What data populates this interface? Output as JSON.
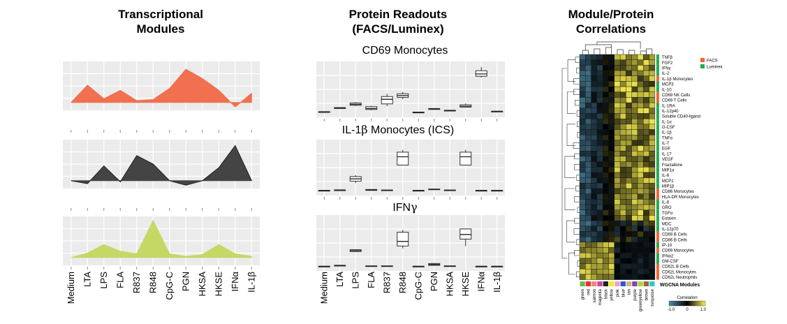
{
  "titles": {
    "transcriptional": [
      "Transcriptional",
      "Modules"
    ],
    "protein": [
      "Protein Readouts",
      "(FACS/Luminex)"
    ],
    "correlation": [
      "Module/Protein",
      "Correlations"
    ]
  },
  "stimuli": [
    "Medium",
    "LTA",
    "LPS",
    "FLA",
    "R837",
    "R848",
    "CpG-C",
    "PGN",
    "HKSA",
    "HKSE",
    "IFNα",
    "IL-1β"
  ],
  "chart_data": [
    {
      "type": "area",
      "panel": "transcriptional-modules",
      "categories": [
        "Medium",
        "LTA",
        "LPS",
        "FLA",
        "R837",
        "R848",
        "CpG-C",
        "PGN",
        "HKSA",
        "HKSE",
        "IFNα",
        "IL-1β"
      ],
      "series": [
        {
          "color": "#f07050",
          "values": [
            0.0,
            0.47,
            0.1,
            0.33,
            0.05,
            0.08,
            0.38,
            0.9,
            0.65,
            0.33,
            -0.12,
            0.25
          ]
        },
        {
          "color": "#444444",
          "values": [
            0.0,
            -0.08,
            0.4,
            -0.03,
            0.68,
            0.45,
            0.0,
            -0.12,
            0.0,
            0.35,
            0.95,
            0.0
          ]
        },
        {
          "color": "#c5d865",
          "values": [
            0.0,
            0.12,
            0.35,
            0.17,
            0.1,
            1.0,
            0.1,
            0.03,
            0.08,
            0.35,
            0.1,
            0.03
          ]
        }
      ]
    },
    {
      "type": "box",
      "panel": "protein-readouts",
      "categories": [
        "Medium",
        "LTA",
        "LPS",
        "FLA",
        "R837",
        "R848",
        "CpG-C",
        "PGN",
        "HKSA",
        "HKSE",
        "IFNα",
        "IL-1β"
      ],
      "subplots": [
        {
          "title_pre": "CD69 Monocytes",
          "title_sym": "",
          "boxes": [
            {
              "q1": 0.03,
              "med": 0.03,
              "q3": 0.03,
              "lo": 0.03,
              "hi": 0.03
            },
            {
              "q1": 0.1,
              "med": 0.11,
              "q3": 0.12,
              "lo": 0.1,
              "hi": 0.12
            },
            {
              "q1": 0.17,
              "med": 0.19,
              "q3": 0.22,
              "lo": 0.15,
              "hi": 0.24
            },
            {
              "q1": 0.08,
              "med": 0.1,
              "q3": 0.14,
              "lo": 0.06,
              "hi": 0.16
            },
            {
              "q1": 0.2,
              "med": 0.3,
              "q3": 0.36,
              "lo": 0.15,
              "hi": 0.42
            },
            {
              "q1": 0.34,
              "med": 0.38,
              "q3": 0.42,
              "lo": 0.3,
              "hi": 0.46
            },
            {
              "q1": 0.02,
              "med": 0.02,
              "q3": 0.02,
              "lo": 0.02,
              "hi": 0.02
            },
            {
              "q1": 0.08,
              "med": 0.09,
              "q3": 0.1,
              "lo": 0.08,
              "hi": 0.1
            },
            {
              "q1": 0.05,
              "med": 0.06,
              "q3": 0.06,
              "lo": 0.05,
              "hi": 0.06
            },
            {
              "q1": 0.13,
              "med": 0.15,
              "q3": 0.18,
              "lo": 0.12,
              "hi": 0.21
            },
            {
              "q1": 0.8,
              "med": 0.85,
              "q3": 0.92,
              "lo": 0.77,
              "hi": 1.0
            },
            {
              "q1": 0.04,
              "med": 0.04,
              "q3": 0.04,
              "lo": 0.04,
              "hi": 0.04
            }
          ]
        },
        {
          "title_pre": "IL-1",
          "title_sym": "β",
          "title_post": " Monocytes (ICS)",
          "boxes": [
            {
              "q1": 0.02,
              "med": 0.02,
              "q3": 0.02,
              "lo": 0.02,
              "hi": 0.02
            },
            {
              "q1": 0.02,
              "med": 0.03,
              "q3": 0.03,
              "lo": 0.02,
              "hi": 0.03
            },
            {
              "q1": 0.22,
              "med": 0.27,
              "q3": 0.32,
              "lo": 0.18,
              "hi": 0.35
            },
            {
              "q1": 0.02,
              "med": 0.03,
              "q3": 0.04,
              "lo": 0.02,
              "hi": 0.04
            },
            {
              "q1": 0.02,
              "med": 0.02,
              "q3": 0.03,
              "lo": 0.02,
              "hi": 0.03
            },
            {
              "q1": 0.57,
              "med": 0.75,
              "q3": 0.85,
              "lo": 0.57,
              "hi": 0.9
            },
            {
              "q1": 0.02,
              "med": 0.02,
              "q3": 0.02,
              "lo": 0.02,
              "hi": 0.02
            },
            {
              "q1": 0.04,
              "med": 0.04,
              "q3": 0.05,
              "lo": 0.04,
              "hi": 0.05
            },
            {
              "q1": 0.02,
              "med": 0.02,
              "q3": 0.03,
              "lo": 0.02,
              "hi": 0.03
            },
            {
              "q1": 0.57,
              "med": 0.75,
              "q3": 0.85,
              "lo": 0.57,
              "hi": 0.9
            },
            {
              "q1": 0.02,
              "med": 0.02,
              "q3": 0.02,
              "lo": 0.02,
              "hi": 0.02
            },
            {
              "q1": 0.02,
              "med": 0.02,
              "q3": 0.02,
              "lo": 0.02,
              "hi": 0.02
            }
          ]
        },
        {
          "title_pre": "IFN",
          "title_sym": "γ",
          "title_post": "",
          "boxes": [
            {
              "q1": 0.01,
              "med": 0.01,
              "q3": 0.01,
              "lo": 0.01,
              "hi": 0.01
            },
            {
              "q1": 0.02,
              "med": 0.03,
              "q3": 0.03,
              "lo": 0.02,
              "hi": 0.03
            },
            {
              "q1": 0.33,
              "med": 0.35,
              "q3": 0.37,
              "lo": 0.32,
              "hi": 0.38
            },
            {
              "q1": 0.01,
              "med": 0.01,
              "q3": 0.02,
              "lo": 0.01,
              "hi": 0.02
            },
            {
              "q1": 0.01,
              "med": 0.01,
              "q3": 0.02,
              "lo": 0.01,
              "hi": 0.02
            },
            {
              "q1": 0.45,
              "med": 0.55,
              "q3": 0.75,
              "lo": 0.4,
              "hi": 0.8
            },
            {
              "q1": 0.01,
              "med": 0.01,
              "q3": 0.01,
              "lo": 0.01,
              "hi": 0.01
            },
            {
              "q1": 0.03,
              "med": 0.05,
              "q3": 0.07,
              "lo": 0.02,
              "hi": 0.08
            },
            {
              "q1": 0.01,
              "med": 0.01,
              "q3": 0.02,
              "lo": 0.01,
              "hi": 0.02
            },
            {
              "q1": 0.6,
              "med": 0.7,
              "q3": 0.82,
              "lo": 0.45,
              "hi": 0.83
            },
            {
              "q1": 0.01,
              "med": 0.01,
              "q3": 0.01,
              "lo": 0.01,
              "hi": 0.01
            },
            {
              "q1": 0.01,
              "med": 0.01,
              "q3": 0.01,
              "lo": 0.01,
              "hi": 0.01
            }
          ]
        }
      ]
    },
    {
      "type": "heatmap",
      "panel": "module-protein-correlations",
      "rows": [
        "TNFβ",
        "FGF2",
        "IFNγ",
        "IL-2",
        "IL-1β Monocytes",
        "MCP3",
        "IL-10",
        "CD69 NK Cells",
        "CD69 T Cells",
        "IL-1RA",
        "IL-12p40",
        "Soluble CD40-ligand",
        "IL-1α",
        "G-CSF",
        "IL-1β",
        "TNFα",
        "IL-7",
        "EGF",
        "IL-17",
        "VEGF",
        "Fractalkine",
        "MIP1α",
        "IL-6",
        "MCP1",
        "MIP1β",
        "CD86 Monocytes",
        "HLA-DR Monocytes",
        "IL-8",
        "GRO",
        "TGFα",
        "Eotaxin",
        "MDC",
        "IL-12p70",
        "CD69 B Cells",
        "CD86 B Cells",
        "IP-10",
        "CD69 Monocytes",
        "IFNα2",
        "GM-CSF",
        "CD62L B Cells",
        "CD62L Monocytes",
        "CD62L Neutrophils"
      ],
      "row_sources": [
        "L",
        "L",
        "L",
        "L",
        "F",
        "L",
        "L",
        "F",
        "F",
        "L",
        "L",
        "L",
        "L",
        "L",
        "L",
        "L",
        "L",
        "L",
        "L",
        "L",
        "L",
        "L",
        "L",
        "L",
        "L",
        "F",
        "F",
        "L",
        "L",
        "L",
        "L",
        "L",
        "L",
        "F",
        "F",
        "L",
        "F",
        "L",
        "L",
        "F",
        "F",
        "F"
      ],
      "columns": [
        "green",
        "red",
        "salmon",
        "magenta",
        "black",
        "yellow",
        "pink",
        "blue",
        "tan",
        "purple",
        "greenyellow",
        "brown",
        "turquoise"
      ],
      "column_colors": [
        "#66bb55",
        "#e63030",
        "#f08878",
        "#cc44aa",
        "#222222",
        "#eeee22",
        "#f2a0cc",
        "#3355cc",
        "#cdb48c",
        "#8844aa",
        "#a8d838",
        "#996633",
        "#30c8c8"
      ],
      "legend": {
        "items": [
          {
            "label": "FACS",
            "color": "#ee6633"
          },
          {
            "label": "Luminex",
            "color": "#22aa55"
          }
        ]
      },
      "module_label": "WGCNA Modules",
      "colorbar": {
        "title": "Correlation",
        "ticks": [
          "-1.0",
          "0",
          "1.0"
        ],
        "range": [
          -1,
          1
        ]
      }
    }
  ]
}
